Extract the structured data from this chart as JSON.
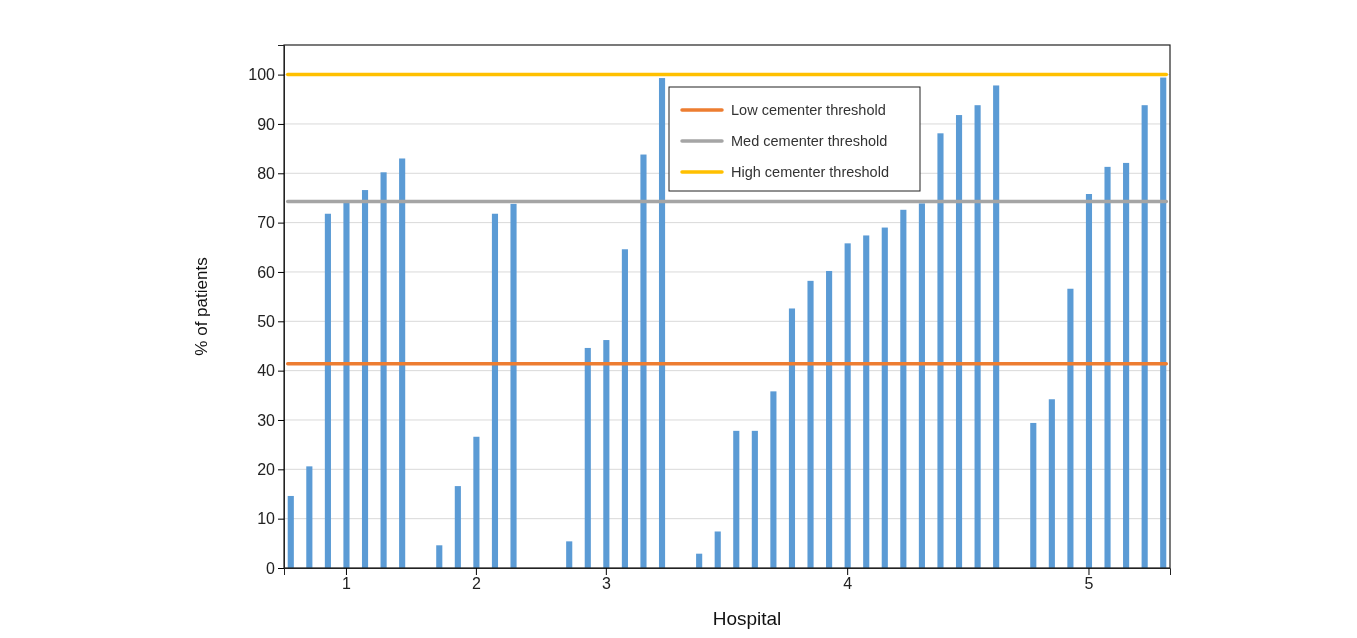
{
  "chart_data": {
    "type": "bar",
    "xlabel": "Hospital",
    "ylabel": "% of patients",
    "categories": [
      null,
      null,
      null,
      "1",
      null,
      null,
      null,
      null,
      null,
      null,
      "2",
      null,
      null,
      null,
      null,
      null,
      null,
      "3",
      null,
      null,
      null,
      null,
      null,
      null,
      null,
      null,
      null,
      null,
      null,
      null,
      "4",
      null,
      null,
      null,
      null,
      null,
      null,
      null,
      null,
      null,
      null,
      null,
      null,
      "5",
      null,
      null,
      null,
      null
    ],
    "values": [
      14.6,
      20.6,
      71.8,
      74.1,
      76.6,
      80.2,
      83.0,
      null,
      4.6,
      16.6,
      26.6,
      71.8,
      73.8,
      null,
      null,
      5.4,
      44.6,
      46.2,
      64.6,
      83.8,
      99.3,
      null,
      2.9,
      7.4,
      27.8,
      27.8,
      35.8,
      52.6,
      58.2,
      60.2,
      65.8,
      67.4,
      69.0,
      72.6,
      73.9,
      88.1,
      91.8,
      93.8,
      97.8,
      null,
      29.4,
      34.2,
      56.6,
      75.8,
      81.3,
      82.1,
      93.8,
      99.4
    ],
    "color": "#5b9bd5",
    "ylim": [
      0,
      106
    ],
    "yticks": [
      0,
      10,
      20,
      30,
      40,
      50,
      60,
      70,
      80,
      90,
      100
    ],
    "grid": "y",
    "ref_lines": [
      {
        "axis": "y",
        "value": 41.4,
        "label": "Low cementer threshold",
        "color": "#ed7d31"
      },
      {
        "axis": "y",
        "value": 74.3,
        "label": "Med cementer threshold",
        "color": "#a5a5a5"
      },
      {
        "axis": "y",
        "value": 100,
        "label": "High cementer threshold",
        "color": "#ffc000"
      }
    ],
    "legend": "top right"
  }
}
